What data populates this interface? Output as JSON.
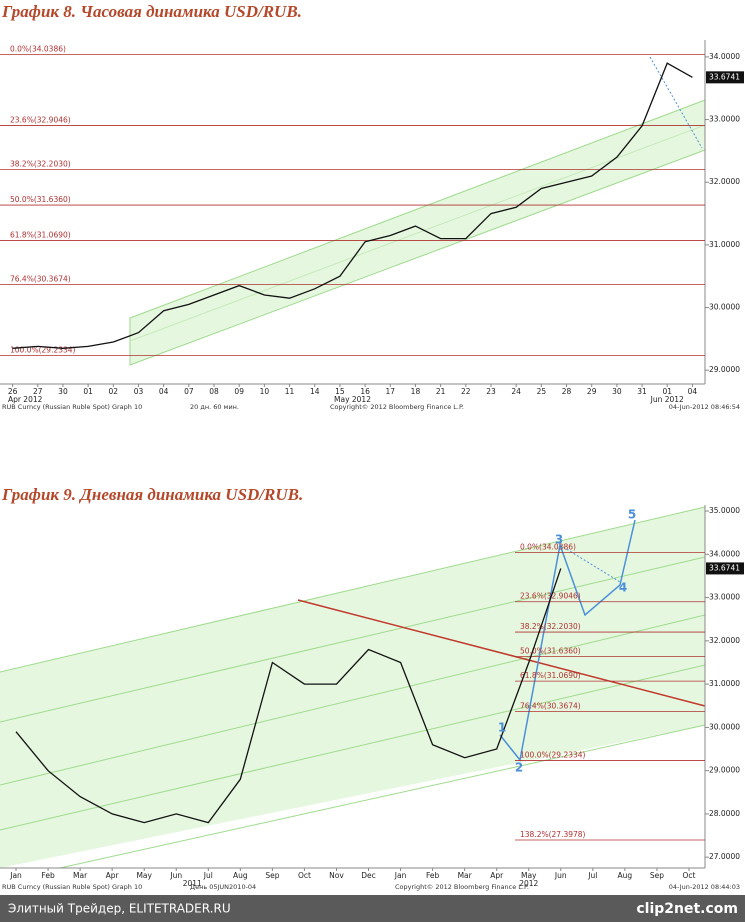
{
  "chart_data": [
    {
      "type": "line",
      "title": "График 8.   Часовая динамика USD/RUB.",
      "categories": [
        "26",
        "27",
        "30",
        "01",
        "02",
        "03",
        "04",
        "07",
        "08",
        "09",
        "10",
        "11",
        "14",
        "15",
        "16",
        "17",
        "18",
        "21",
        "22",
        "23",
        "24",
        "25",
        "28",
        "29",
        "30",
        "31",
        "01",
        "04"
      ],
      "values": [
        29.35,
        29.38,
        29.35,
        29.38,
        29.45,
        29.6,
        29.95,
        30.05,
        30.2,
        30.35,
        30.2,
        30.15,
        30.3,
        30.5,
        31.05,
        31.15,
        31.3,
        31.1,
        31.1,
        31.5,
        31.6,
        31.9,
        32.0,
        32.1,
        32.4,
        32.9,
        33.9,
        33.6741
      ],
      "color": "#111111",
      "x_groups": [
        "Apr 2012",
        "May 2012",
        "Jun 2012"
      ],
      "ylim": [
        28.78,
        34.27
      ],
      "yticks": [
        {
          "value": 29,
          "label": "29.0000"
        },
        {
          "value": 30,
          "label": "30.0000"
        },
        {
          "value": 31,
          "label": "31.0000"
        },
        {
          "value": 32,
          "label": "32.0000"
        },
        {
          "value": 33,
          "label": "33.0000"
        },
        {
          "value": 34,
          "label": "34.0000"
        }
      ],
      "last_price": 33.6741,
      "fib_levels": [
        {
          "value": 34.0386,
          "label": "0.0%(34.0386)"
        },
        {
          "value": 32.9046,
          "label": "23.6%(32.9046)"
        },
        {
          "value": 32.203,
          "label": "38.2%(32.2030)"
        },
        {
          "value": 31.636,
          "label": "50.0%(31.6360)"
        },
        {
          "value": 31.069,
          "label": "61.8%(31.0690)"
        },
        {
          "value": 30.3674,
          "label": "76.4%(30.3674)"
        },
        {
          "value": 29.2334,
          "label": "100.0%(29.2334)"
        }
      ],
      "footnotes": [
        "RUB Curncy (Russian Ruble Spot) Graph 10",
        "20 дн. 60 мин.",
        "Copyright© 2012 Bloomberg Finance L.P.",
        "04-Jun-2012 08:46:54"
      ]
    },
    {
      "type": "line",
      "title": "График 9.   Дневная динамика USD/RUB.",
      "categories": [
        "Jan",
        "Feb",
        "Mar",
        "Apr",
        "May",
        "Jun",
        "Jul",
        "Aug",
        "Sep",
        "Oct",
        "Nov",
        "Dec",
        "Jan",
        "Feb",
        "Mar",
        "Apr",
        "May",
        "Jun",
        "Jul",
        "Aug",
        "Sep",
        "Oct"
      ],
      "values": [
        29.9,
        29.0,
        28.4,
        28.0,
        27.8,
        28.0,
        27.8,
        28.8,
        31.5,
        31.0,
        31.0,
        31.8,
        31.5,
        29.6,
        29.3,
        29.5,
        31.5,
        33.6741,
        null,
        null,
        null,
        null
      ],
      "color": "#111111",
      "x_groups": [
        "2011",
        "2012"
      ],
      "ylim": [
        26.75,
        35.14
      ],
      "yticks": [
        {
          "value": 27,
          "label": "27.0000"
        },
        {
          "value": 28,
          "label": "28.0000"
        },
        {
          "value": 29,
          "label": "29.0000"
        },
        {
          "value": 30,
          "label": "30.0000"
        },
        {
          "value": 31,
          "label": "31.0000"
        },
        {
          "value": 32,
          "label": "32.0000"
        },
        {
          "value": 33,
          "label": "33.0000"
        },
        {
          "value": 34,
          "label": "34.0000"
        },
        {
          "value": 35,
          "label": "35.0000"
        }
      ],
      "last_price": 33.6741,
      "fib_levels": [
        {
          "value": 34.0386,
          "label": "0.0%(34.0386)"
        },
        {
          "value": 32.9046,
          "label": "23.6%(32.9046)"
        },
        {
          "value": 32.203,
          "label": "38.2%(32.2030)"
        },
        {
          "value": 31.636,
          "label": "50.0%(31.6360)"
        },
        {
          "value": 31.069,
          "label": "61.8%(31.0690)"
        },
        {
          "value": 30.3674,
          "label": "76.4%(30.3674)"
        },
        {
          "value": 29.2334,
          "label": "100.0%(29.2334)"
        },
        {
          "value": 27.3978,
          "label": "138.2%(27.3978)"
        }
      ],
      "wave_labels": [
        "1",
        "2",
        "3",
        "4",
        "5"
      ],
      "footnotes": [
        "RUB Curncy (Russian Ruble Spot) Graph 10",
        "День 05JUN2010-04",
        "Copyright© 2012 Bloomberg Finance L.P.",
        "04-Jun-2012 08:44:03"
      ]
    }
  ],
  "page": {
    "source": "Элитный Трейдер, ELITETRADER.RU",
    "watermark": "clip2net.com"
  }
}
